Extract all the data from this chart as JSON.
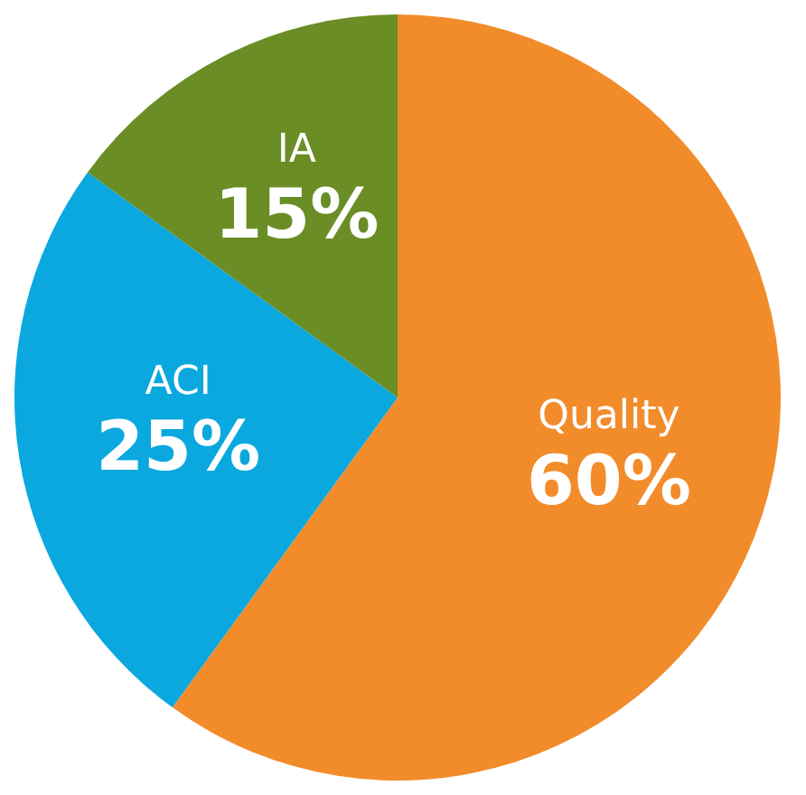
{
  "chart_data": {
    "type": "pie",
    "categories": [
      "Quality",
      "ACI",
      "IA"
    ],
    "values": [
      60,
      25,
      15
    ],
    "colors": [
      "#f28c2b",
      "#0aa8de",
      "#6a8d25"
    ],
    "value_labels": [
      "60%",
      "25%",
      "15%"
    ],
    "legend": false
  }
}
